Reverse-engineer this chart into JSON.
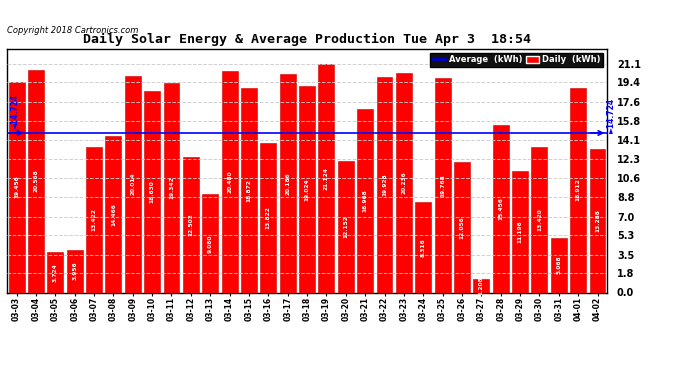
{
  "title": "Daily Solar Energy & Average Production Tue Apr 3  18:54",
  "copyright": "Copyright 2018 Cartronics.com",
  "average_value": 14.724,
  "bar_color": "#FF0000",
  "average_line_color": "#0000FF",
  "categories": [
    "03-03",
    "03-04",
    "03-05",
    "03-06",
    "03-07",
    "03-08",
    "03-09",
    "03-10",
    "03-11",
    "03-12",
    "03-13",
    "03-14",
    "03-15",
    "03-16",
    "03-17",
    "03-18",
    "03-19",
    "03-20",
    "03-21",
    "03-22",
    "03-23",
    "03-24",
    "03-25",
    "03-26",
    "03-27",
    "03-28",
    "03-29",
    "03-30",
    "03-31",
    "04-01",
    "04-02"
  ],
  "values": [
    19.456,
    20.568,
    3.724,
    3.956,
    13.422,
    14.466,
    20.014,
    18.63,
    19.342,
    12.502,
    9.08,
    20.48,
    18.872,
    13.822,
    20.186,
    19.024,
    21.124,
    12.152,
    16.968,
    19.928,
    20.236,
    8.316,
    19.768,
    12.056,
    1.208,
    15.456,
    11.196,
    13.42,
    5.068,
    18.912,
    13.288
  ],
  "yticks": [
    0.0,
    1.8,
    3.5,
    5.3,
    7.0,
    8.8,
    10.6,
    12.3,
    14.1,
    15.8,
    17.6,
    19.4,
    21.1
  ],
  "ylim": [
    0.0,
    22.5
  ],
  "background_color": "#FFFFFF",
  "plot_bg_color": "#FFFFFF",
  "grid_color": "#AAAAAA",
  "avg_label": "Average  (kWh)",
  "daily_label": "Daily  (kWh)",
  "legend_avg_bg": "#0000CC",
  "legend_daily_bg": "#FF0000",
  "avg_left_label": "◄14.724",
  "avg_right_label": "╵14.724"
}
